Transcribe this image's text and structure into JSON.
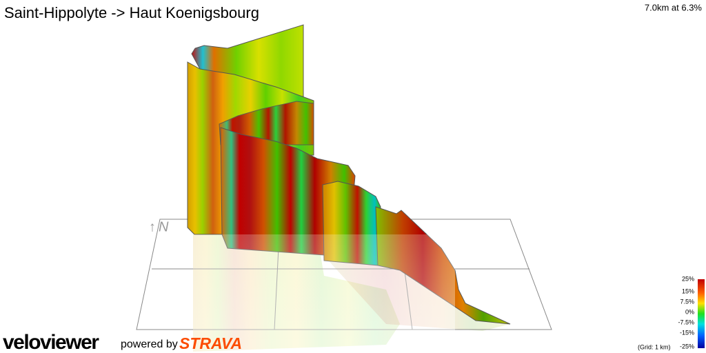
{
  "header": {
    "title": "Saint-Hippolyte -> Haut Koenigsbourg",
    "summary": "7.0km at 6.3%"
  },
  "compass": "N",
  "legend": {
    "labels": [
      "25%",
      "15%",
      "7.5%",
      "0%",
      "-7.5%",
      "-15%",
      "-25%"
    ],
    "grid_note": "(Grid: 1 km)"
  },
  "footer": {
    "logo": "veloviewer",
    "powered": "powered by",
    "strava": "STRAVA"
  }
}
